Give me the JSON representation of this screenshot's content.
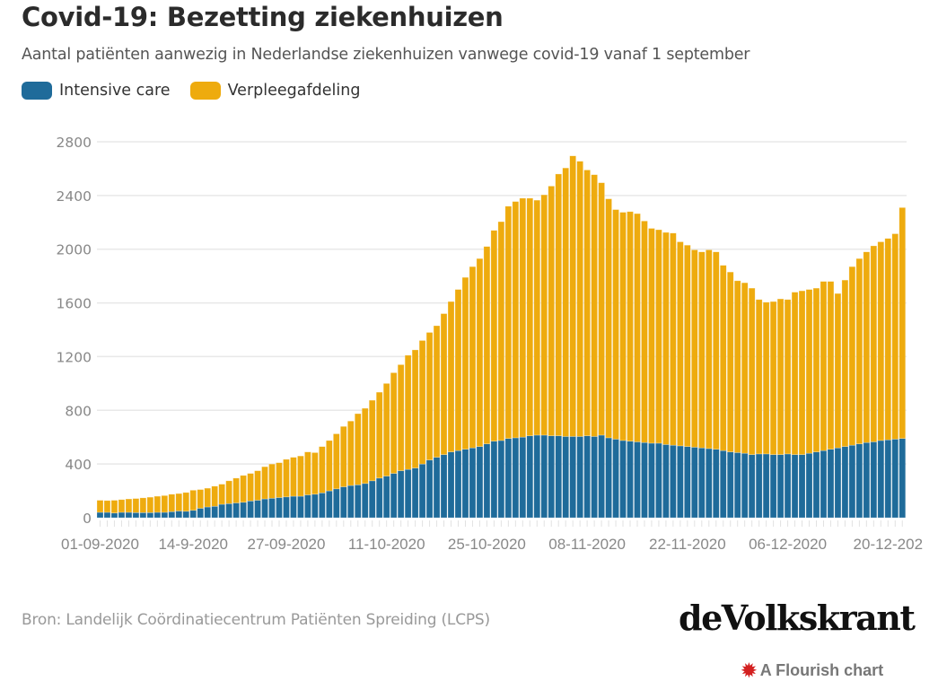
{
  "header": {
    "title": "Covid-19: Bezetting ziekenhuizen",
    "subtitle": "Aantal patiënten aanwezig in Nederlandse ziekenhuizen vanwege covid-19 vanaf 1 september"
  },
  "legend": [
    {
      "label": "Intensive care",
      "color": "#1f6b9a"
    },
    {
      "label": "Verpleegafdeling",
      "color": "#eeab0e"
    }
  ],
  "footer": {
    "source": "Bron: Landelijk Coördinatiecentrum Patiënten Spreiding (LCPS)",
    "logo": "deVolkskrant",
    "flourish_icon": "flourish-burst-icon",
    "flourish_label": "A Flourish chart"
  },
  "chart_data": {
    "type": "bar",
    "stacked": true,
    "title": "Covid-19: Bezetting ziekenhuizen",
    "xlabel": "",
    "ylabel": "",
    "ylim": [
      0,
      2800
    ],
    "yticks": [
      0,
      400,
      800,
      1200,
      1600,
      2000,
      2400,
      2800
    ],
    "grid": true,
    "legend_position": "top-left",
    "x_start": "01-09-2020",
    "x_tick_labels": [
      {
        "index": 0,
        "label": "01-09-2020"
      },
      {
        "index": 13,
        "label": "14-9-2020"
      },
      {
        "index": 26,
        "label": "27-09-2020"
      },
      {
        "index": 40,
        "label": "11-10-2020"
      },
      {
        "index": 54,
        "label": "25-10-2020"
      },
      {
        "index": 68,
        "label": "08-11-2020"
      },
      {
        "index": 82,
        "label": "22-11-2020"
      },
      {
        "index": 96,
        "label": "06-12-2020"
      },
      {
        "index": 110,
        "label": "20-12-202"
      }
    ],
    "series": [
      {
        "name": "Intensive care",
        "color": "#1f6b9a",
        "values": [
          40,
          40,
          35,
          40,
          40,
          38,
          38,
          38,
          40,
          40,
          45,
          50,
          48,
          55,
          70,
          80,
          85,
          100,
          105,
          110,
          115,
          125,
          130,
          140,
          145,
          150,
          155,
          160,
          160,
          170,
          175,
          185,
          200,
          215,
          230,
          240,
          245,
          255,
          275,
          295,
          310,
          330,
          350,
          360,
          370,
          400,
          430,
          450,
          470,
          490,
          500,
          510,
          520,
          530,
          550,
          570,
          575,
          590,
          595,
          600,
          610,
          615,
          615,
          610,
          610,
          605,
          605,
          605,
          610,
          605,
          615,
          595,
          585,
          575,
          570,
          565,
          560,
          555,
          555,
          545,
          540,
          535,
          530,
          525,
          520,
          515,
          510,
          500,
          490,
          485,
          480,
          470,
          475,
          475,
          470,
          470,
          475,
          470,
          470,
          480,
          490,
          500,
          510,
          520,
          530,
          540,
          550,
          560,
          565,
          575,
          580,
          585,
          590
        ]
      },
      {
        "name": "Verpleegafdeling",
        "color": "#eeab0e",
        "values": [
          90,
          88,
          95,
          95,
          100,
          105,
          110,
          115,
          120,
          125,
          130,
          130,
          140,
          150,
          140,
          140,
          150,
          150,
          170,
          185,
          200,
          205,
          220,
          240,
          255,
          260,
          280,
          290,
          300,
          320,
          310,
          345,
          375,
          410,
          450,
          480,
          530,
          560,
          600,
          640,
          690,
          750,
          790,
          850,
          880,
          920,
          950,
          980,
          1050,
          1120,
          1200,
          1280,
          1350,
          1400,
          1470,
          1570,
          1630,
          1730,
          1760,
          1780,
          1770,
          1750,
          1790,
          1860,
          1950,
          2000,
          2090,
          2050,
          1980,
          1950,
          1880,
          1780,
          1710,
          1700,
          1710,
          1700,
          1650,
          1600,
          1590,
          1580,
          1580,
          1520,
          1500,
          1470,
          1460,
          1480,
          1470,
          1380,
          1340,
          1280,
          1270,
          1240,
          1150,
          1130,
          1140,
          1160,
          1150,
          1210,
          1220,
          1220,
          1220,
          1260,
          1250,
          1150,
          1240,
          1330,
          1380,
          1420,
          1460,
          1480,
          1500,
          1530,
          1720
        ]
      }
    ]
  }
}
